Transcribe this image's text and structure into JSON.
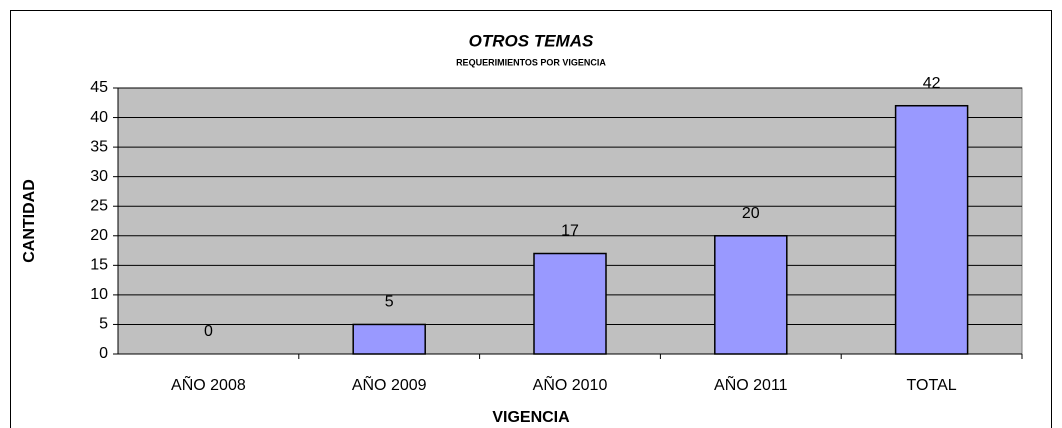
{
  "chart_data": {
    "type": "bar",
    "title": "OTROS TEMAS",
    "subtitle": "REQUERIMIENTOS POR VIGENCIA",
    "x_label": "VIGENCIA",
    "y_label": "CANTIDAD",
    "categories": [
      "AÑO 2008",
      "AÑO 2009",
      "AÑO 2010",
      "AÑO 2011",
      "TOTAL"
    ],
    "values": [
      0,
      5,
      17,
      20,
      42
    ],
    "color": "#9999ff",
    "ylim": [
      0,
      45
    ],
    "yticks": [
      0,
      5,
      10,
      15,
      20,
      25,
      30,
      35,
      40,
      45
    ],
    "grid": true
  }
}
